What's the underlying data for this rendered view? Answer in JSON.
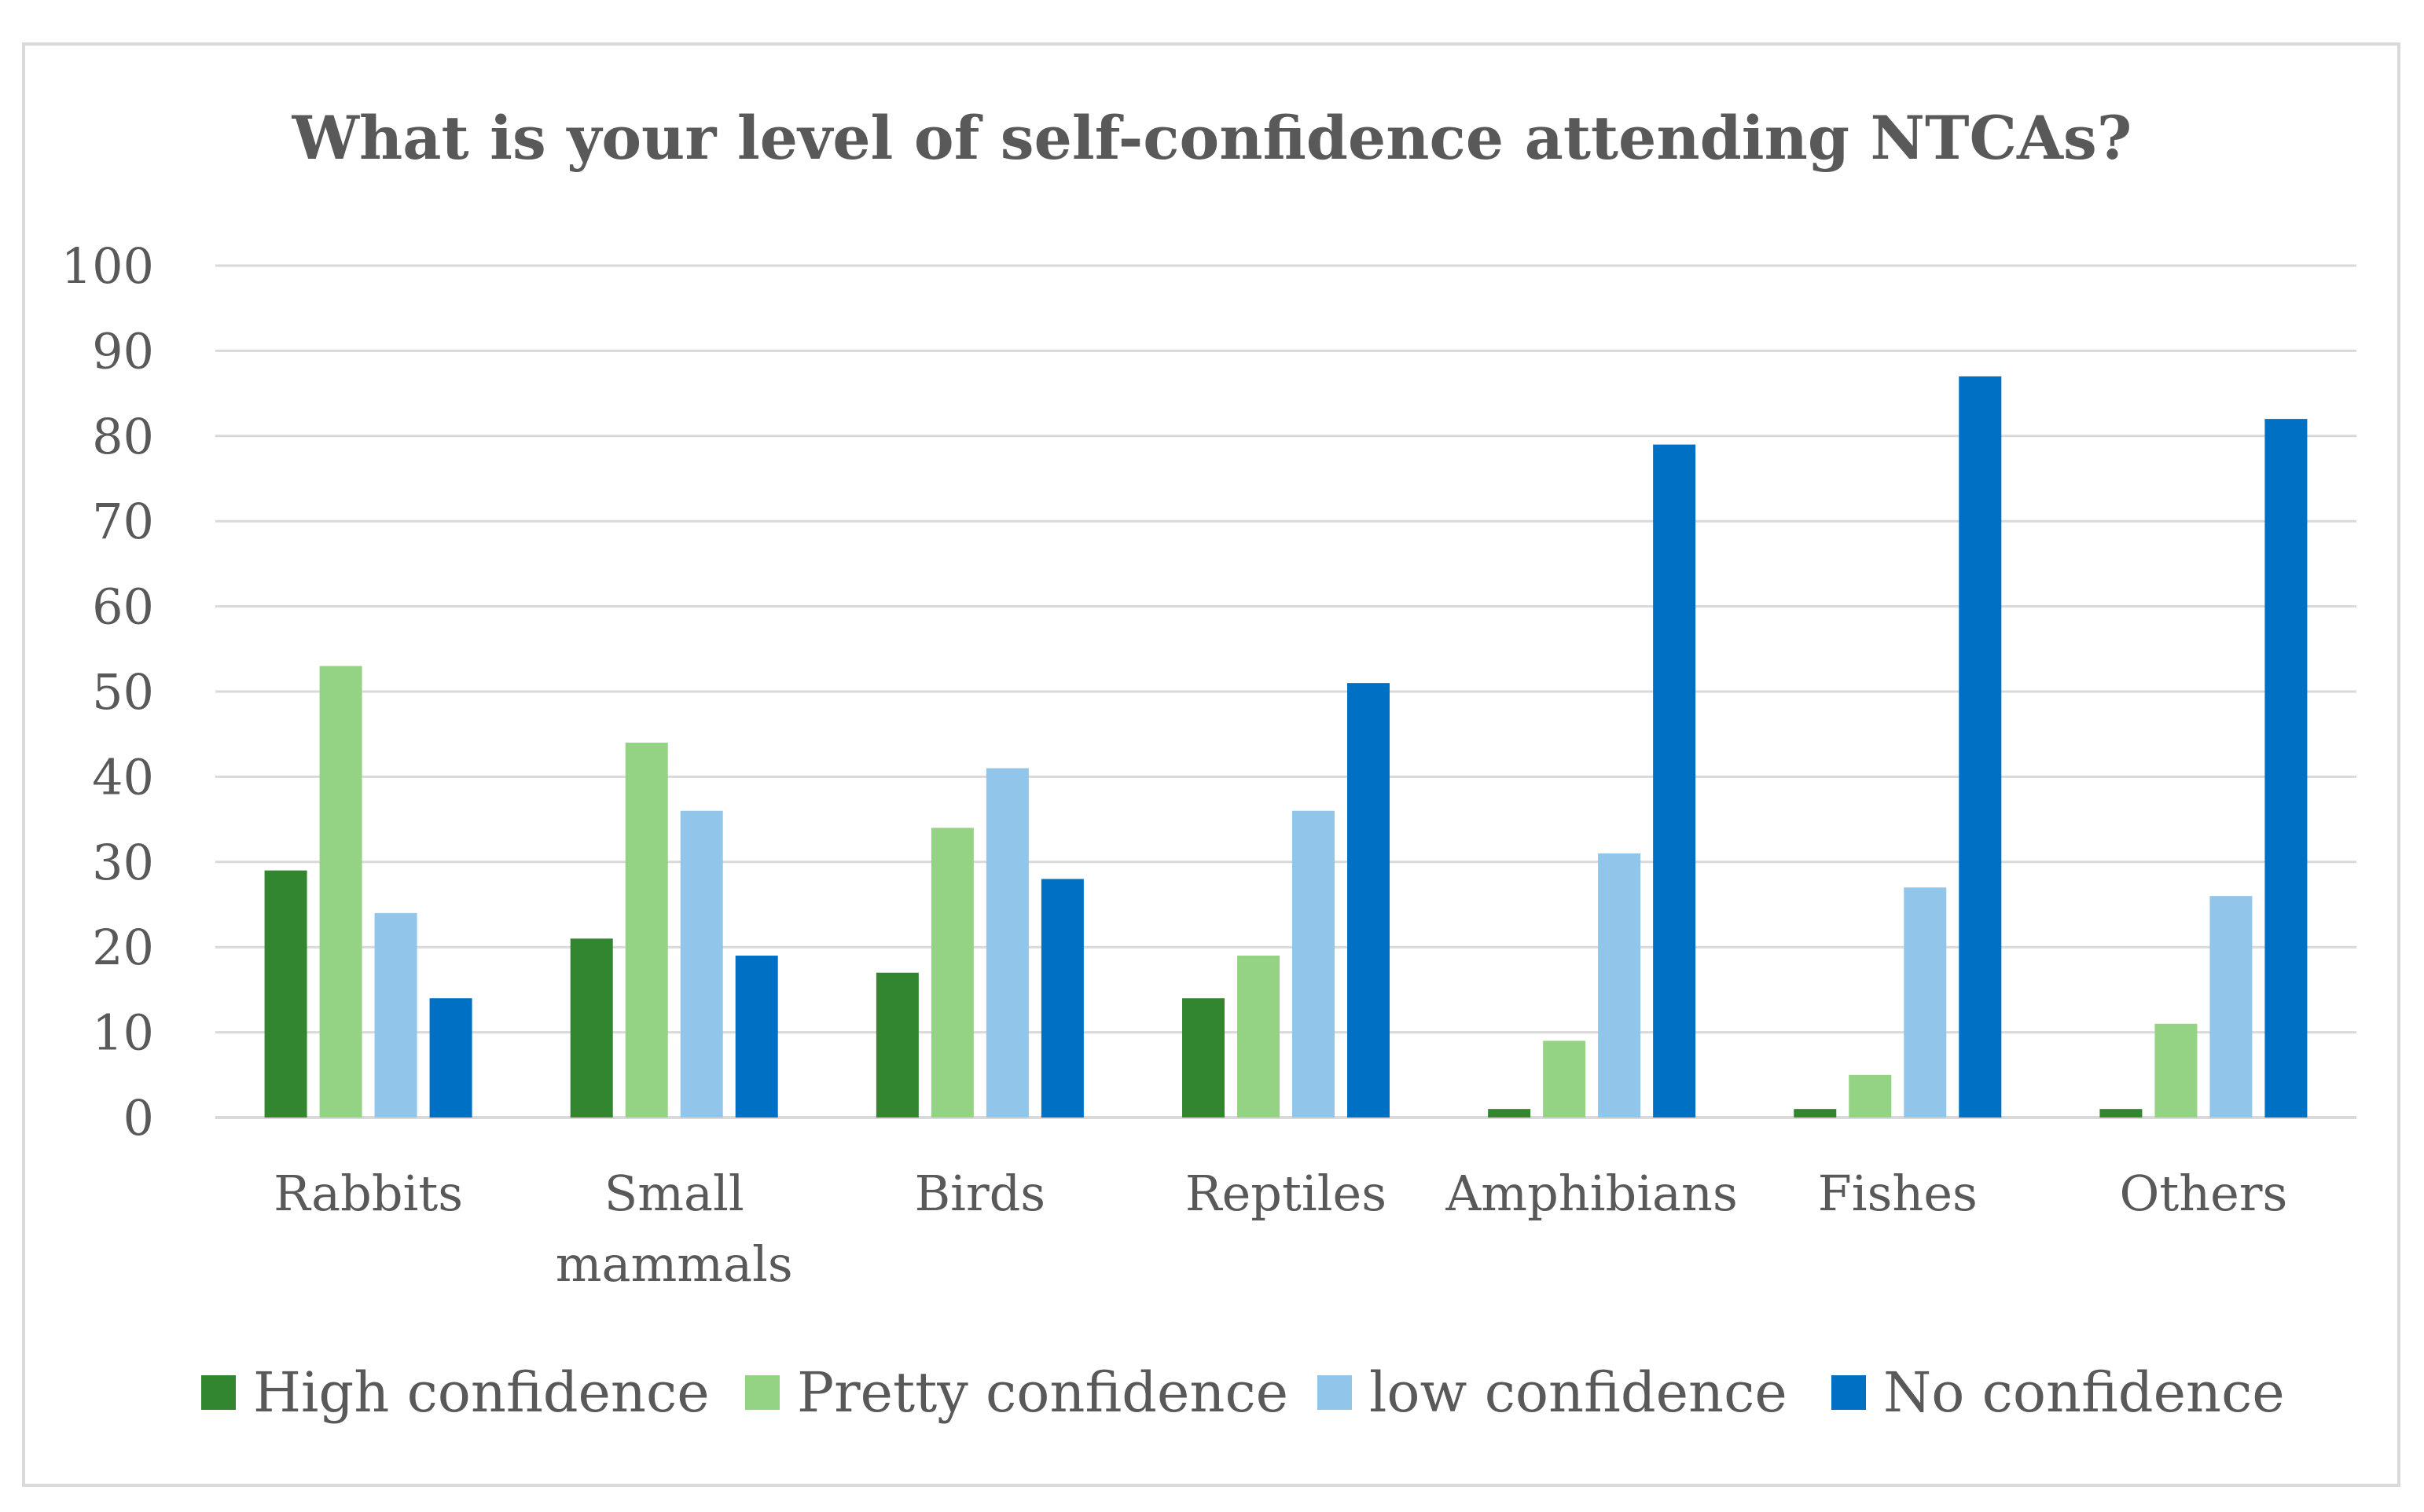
{
  "chart_data": {
    "type": "bar",
    "title": "What is your level of self-confidence attending NTCAs?",
    "xlabel": "",
    "ylabel": "",
    "ylim": [
      0,
      100
    ],
    "yticks": [
      "0",
      "10",
      "20",
      "30",
      "40",
      "50",
      "60",
      "70",
      "80",
      "90",
      "100"
    ],
    "grid": true,
    "legend_position": "bottom",
    "categories": [
      [
        "Rabbits"
      ],
      [
        "Small",
        "mammals"
      ],
      [
        "Birds"
      ],
      [
        "Reptiles"
      ],
      [
        "Amphibians"
      ],
      [
        "Fishes"
      ],
      [
        "Others"
      ]
    ],
    "series": [
      {
        "name": "High confidence",
        "color": "#31862f",
        "values": [
          29,
          21,
          17,
          14,
          1,
          1,
          1
        ]
      },
      {
        "name": "Pretty confidence",
        "color": "#95d384",
        "values": [
          53,
          44,
          34,
          19,
          9,
          5,
          11
        ]
      },
      {
        "name": "low confidence",
        "color": "#92c5ea",
        "values": [
          24,
          36,
          41,
          36,
          31,
          27,
          26
        ]
      },
      {
        "name": "No confidence",
        "color": "#0070c4",
        "values": [
          14,
          19,
          28,
          51,
          79,
          87,
          82
        ]
      }
    ]
  }
}
